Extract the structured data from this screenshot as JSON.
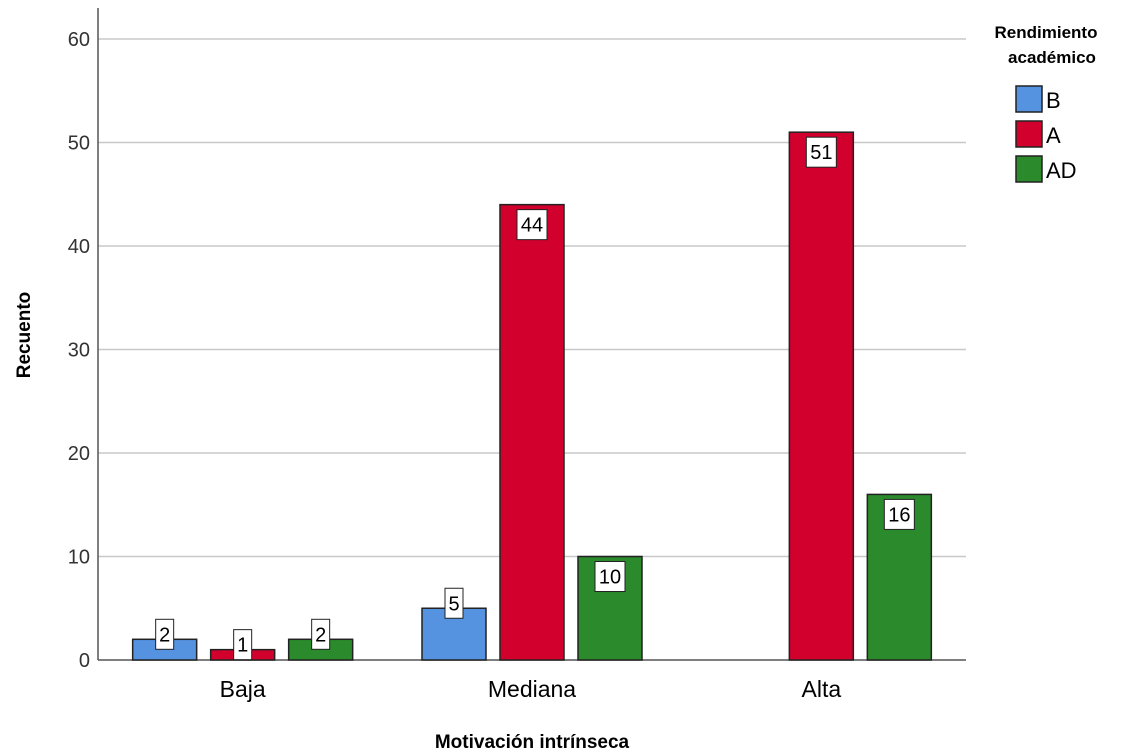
{
  "chart_data": {
    "type": "bar",
    "xlabel": "Motivación intrínseca",
    "ylabel": "Recuento",
    "ylim": [
      0,
      63
    ],
    "yticks": [
      0,
      10,
      20,
      30,
      40,
      50,
      60
    ],
    "grid": true,
    "legend": {
      "title_lines": [
        "Rendimiento",
        "académico"
      ],
      "placement": "top-right"
    },
    "categories": [
      "Baja",
      "Mediana",
      "Alta"
    ],
    "series": [
      {
        "name": "B",
        "color": "#5592e0",
        "values": [
          2,
          5,
          null
        ]
      },
      {
        "name": "A",
        "color": "#d2002d",
        "values": [
          1,
          44,
          51
        ]
      },
      {
        "name": "AD",
        "color": "#2b8a2b",
        "values": [
          2,
          10,
          16
        ]
      }
    ]
  }
}
